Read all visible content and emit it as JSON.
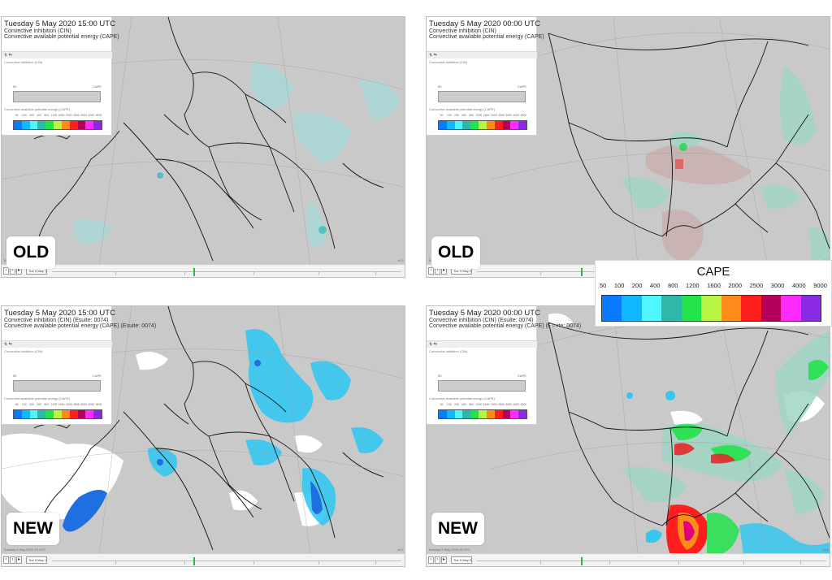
{
  "panels": [
    {
      "id": "tl",
      "badge": "OLD",
      "date": "Tuesday 5 May 2020 15:00 UTC",
      "line1": "Convective inhibition (CIN)",
      "line2": "Convective available potential energy (CAPE)",
      "timeline_caption": "Tuesday 5 May 2020 15 UTC",
      "timeline_select": "Tue 5 May 12Z",
      "version": "v0.1"
    },
    {
      "id": "tr",
      "badge": "OLD",
      "date": "Tuesday 5 May 2020 00:00 UTC",
      "line1": "Convective inhibition (CIN)",
      "line2": "Convective available potential energy (CAPE)",
      "timeline_caption": "Tuesday 5 May 2020 00 UTC",
      "timeline_select": "Tue 5 May 00Z",
      "version": "v0.1"
    },
    {
      "id": "bl",
      "badge": "NEW",
      "date": "Tuesday 5 May 2020 15:00 UTC",
      "line1": "Convective inhibition (CIN) (Esuite: 0074)",
      "line2": "Convective available potential energy (CAPE) (Esuite: 0074)",
      "timeline_caption": "Tuesday 5 May 2020 15 UTC",
      "timeline_select": "Tue 5 May 12Z",
      "version": "v0.1"
    },
    {
      "id": "br",
      "badge": "NEW",
      "date": "Tuesday 5 May 2020 00:00 UTC",
      "line1": "Convective inhibition (CIN) (Esuite: 0074)",
      "line2": "Convective available potential energy (CAPE) (Esuite: 0074)",
      "timeline_caption": "Tuesday 5 May 2020 00 UTC",
      "timeline_select": "Tue 5 May 00Z",
      "version": "v0.1"
    }
  ],
  "legend": {
    "title": "CAPE",
    "labels": [
      "50",
      "100",
      "200",
      "400",
      "800",
      "1200",
      "1600",
      "2000",
      "2500",
      "3000",
      "4000",
      "9000"
    ],
    "colors": [
      "#0a7bff",
      "#10b8ff",
      "#4ff5ff",
      "#2fb7a8",
      "#22e34b",
      "#b8f542",
      "#ff8c1a",
      "#ff1e1e",
      "#b5005b",
      "#ff2aff",
      "#8a2be2"
    ]
  },
  "mini_legend": {
    "cin_title": "Convective inhibition (CIN)",
    "cin_left": "50",
    "cin_right": "CAPE",
    "cape_title": "Convective available potential energy (CAPE)",
    "ticks": [
      "50",
      "100",
      "200",
      "400",
      "800",
      "1200",
      "1600",
      "2000",
      "2500",
      "3000",
      "4000",
      "9000"
    ]
  },
  "map_colors": {
    "land": "#c9c9c9",
    "border": "#111111",
    "light_cape": "#9fd6d6",
    "medium_cape": "#36c7f0",
    "blue_cape": "#1f6fe0",
    "cin_white": "#ffffff",
    "red_cape": "#e8484a",
    "green_cape": "#3fe060"
  }
}
